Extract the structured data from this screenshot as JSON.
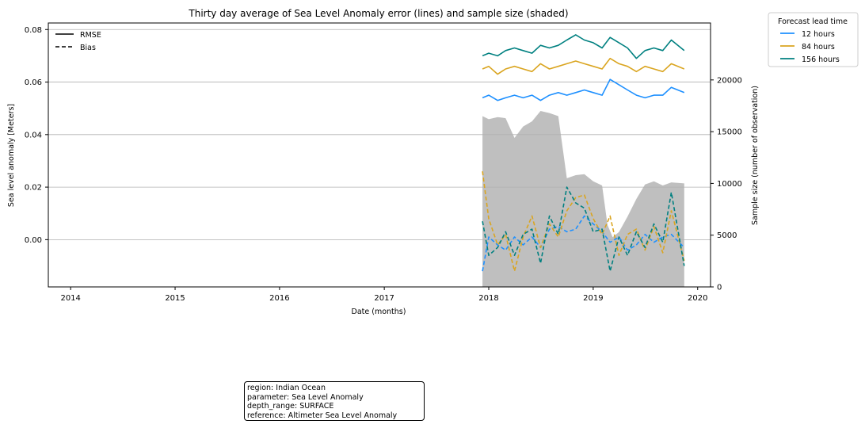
{
  "chart_data": {
    "type": "line",
    "title": "Thirty day average of Sea Level Anomaly error (lines) and sample size (shaded)",
    "xlabel": "Date (months)",
    "ylabel": "Sea level anomaly [Meters]",
    "y2label": "Sample size (number of observation)",
    "x_ticks": [
      "2014",
      "2015",
      "2016",
      "2017",
      "2018",
      "2019",
      "2020"
    ],
    "y_ticks": [
      "0.00",
      "0.02",
      "0.04",
      "0.06",
      "0.08"
    ],
    "y2_ticks": [
      "0",
      "5000",
      "10000",
      "15000",
      "20000"
    ],
    "xlim": [
      "2013-10-15",
      "2020-02-15"
    ],
    "ylim": [
      -0.018,
      0.0825
    ],
    "y2lim": [
      0,
      25500
    ],
    "grid": "horizontal",
    "style_legend": {
      "title": "",
      "entries": [
        {
          "label": "RMSE",
          "dash": "solid"
        },
        {
          "label": "Bias",
          "dash": "dashed"
        }
      ],
      "position": "top-left"
    },
    "lead_legend": {
      "title": "Forecast lead time",
      "entries": [
        "12 hours",
        "84 hours",
        "156 hours"
      ],
      "position": "outside-top-right"
    },
    "colors": {
      "12 hours": "#1e90ff",
      "84 hours": "#daa520",
      "156 hours": "#008080",
      "sample": "#bfbfbf"
    },
    "series": [
      {
        "name": "12 hours",
        "metric": "RMSE",
        "x": [
          "2017-12-10",
          "2018-01-01",
          "2018-02-01",
          "2018-03-01",
          "2018-04-01",
          "2018-05-01",
          "2018-06-01",
          "2018-07-01",
          "2018-08-01",
          "2018-09-01",
          "2018-10-01",
          "2018-11-01",
          "2018-12-01",
          "2019-01-01",
          "2019-02-01",
          "2019-03-01",
          "2019-04-01",
          "2019-05-01",
          "2019-06-01",
          "2019-07-01",
          "2019-08-01",
          "2019-09-01",
          "2019-10-01",
          "2019-11-15"
        ],
        "y": [
          0.054,
          0.055,
          0.053,
          0.054,
          0.055,
          0.054,
          0.055,
          0.053,
          0.055,
          0.056,
          0.055,
          0.056,
          0.057,
          0.056,
          0.055,
          0.061,
          0.059,
          0.057,
          0.055,
          0.054,
          0.055,
          0.055,
          0.058,
          0.056
        ]
      },
      {
        "name": "84 hours",
        "metric": "RMSE",
        "x": [
          "2017-12-10",
          "2018-01-01",
          "2018-02-01",
          "2018-03-01",
          "2018-04-01",
          "2018-05-01",
          "2018-06-01",
          "2018-07-01",
          "2018-08-01",
          "2018-09-01",
          "2018-10-01",
          "2018-11-01",
          "2018-12-01",
          "2019-01-01",
          "2019-02-01",
          "2019-03-01",
          "2019-04-01",
          "2019-05-01",
          "2019-06-01",
          "2019-07-01",
          "2019-08-01",
          "2019-09-01",
          "2019-10-01",
          "2019-11-15"
        ],
        "y": [
          0.065,
          0.066,
          0.063,
          0.065,
          0.066,
          0.065,
          0.064,
          0.067,
          0.065,
          0.066,
          0.067,
          0.068,
          0.067,
          0.066,
          0.065,
          0.069,
          0.067,
          0.066,
          0.064,
          0.066,
          0.065,
          0.064,
          0.067,
          0.065
        ]
      },
      {
        "name": "156 hours",
        "metric": "RMSE",
        "x": [
          "2017-12-10",
          "2018-01-01",
          "2018-02-01",
          "2018-03-01",
          "2018-04-01",
          "2018-05-01",
          "2018-06-01",
          "2018-07-01",
          "2018-08-01",
          "2018-09-01",
          "2018-10-01",
          "2018-11-01",
          "2018-12-01",
          "2019-01-01",
          "2019-02-01",
          "2019-03-01",
          "2019-04-01",
          "2019-05-01",
          "2019-06-01",
          "2019-07-01",
          "2019-08-01",
          "2019-09-01",
          "2019-10-01",
          "2019-11-15"
        ],
        "y": [
          0.07,
          0.071,
          0.07,
          0.072,
          0.073,
          0.072,
          0.071,
          0.074,
          0.073,
          0.074,
          0.076,
          0.078,
          0.076,
          0.075,
          0.073,
          0.077,
          0.075,
          0.073,
          0.069,
          0.072,
          0.073,
          0.072,
          0.076,
          0.072
        ]
      },
      {
        "name": "12 hours",
        "metric": "Bias",
        "x": [
          "2017-12-10",
          "2018-01-01",
          "2018-02-01",
          "2018-03-01",
          "2018-04-01",
          "2018-05-01",
          "2018-06-01",
          "2018-07-01",
          "2018-08-01",
          "2018-09-01",
          "2018-10-01",
          "2018-11-01",
          "2018-12-01",
          "2019-01-01",
          "2019-02-01",
          "2019-03-01",
          "2019-04-01",
          "2019-05-01",
          "2019-06-01",
          "2019-07-01",
          "2019-08-01",
          "2019-09-01",
          "2019-10-01",
          "2019-11-15"
        ],
        "y": [
          -0.012,
          0.001,
          -0.002,
          -0.004,
          0.001,
          -0.002,
          0.001,
          -0.003,
          0.004,
          0.005,
          0.003,
          0.004,
          0.009,
          0.006,
          0.003,
          -0.001,
          0.001,
          -0.004,
          -0.002,
          0.002,
          -0.001,
          0.001,
          0.002,
          -0.003
        ]
      },
      {
        "name": "84 hours",
        "metric": "Bias",
        "x": [
          "2017-12-10",
          "2018-01-01",
          "2018-02-01",
          "2018-03-01",
          "2018-04-01",
          "2018-05-01",
          "2018-06-01",
          "2018-07-01",
          "2018-08-01",
          "2018-09-01",
          "2018-10-01",
          "2018-11-01",
          "2018-12-01",
          "2019-01-01",
          "2019-02-01",
          "2019-03-01",
          "2019-04-01",
          "2019-05-01",
          "2019-06-01",
          "2019-07-01",
          "2019-08-01",
          "2019-09-01",
          "2019-10-01",
          "2019-11-15"
        ],
        "y": [
          0.026,
          0.008,
          -0.002,
          0.002,
          -0.012,
          0.001,
          0.009,
          -0.003,
          0.006,
          0.001,
          0.011,
          0.016,
          0.017,
          0.008,
          0.002,
          0.009,
          -0.006,
          0.002,
          0.004,
          -0.004,
          0.005,
          -0.005,
          0.011,
          -0.008
        ]
      },
      {
        "name": "156 hours",
        "metric": "Bias",
        "x": [
          "2017-12-10",
          "2018-01-01",
          "2018-02-01",
          "2018-03-01",
          "2018-04-01",
          "2018-05-01",
          "2018-06-01",
          "2018-07-01",
          "2018-08-01",
          "2018-09-01",
          "2018-10-01",
          "2018-11-01",
          "2018-12-01",
          "2019-01-01",
          "2019-02-01",
          "2019-03-01",
          "2019-04-01",
          "2019-05-01",
          "2019-06-01",
          "2019-07-01",
          "2019-08-01",
          "2019-09-01",
          "2019-10-01",
          "2019-11-15"
        ],
        "y": [
          0.007,
          -0.006,
          -0.003,
          0.003,
          -0.006,
          0.002,
          0.004,
          -0.009,
          0.009,
          0.002,
          0.02,
          0.014,
          0.012,
          0.003,
          0.004,
          -0.012,
          0.001,
          -0.006,
          0.003,
          -0.003,
          0.006,
          -0.001,
          0.018,
          -0.01
        ]
      }
    ],
    "sample_size": {
      "type": "area",
      "x": [
        "2017-12-10",
        "2018-01-01",
        "2018-02-01",
        "2018-03-01",
        "2018-04-01",
        "2018-05-01",
        "2018-06-01",
        "2018-07-01",
        "2018-08-01",
        "2018-09-01",
        "2018-10-01",
        "2018-11-01",
        "2018-12-01",
        "2019-01-01",
        "2019-02-01",
        "2019-02-20",
        "2019-03-10",
        "2019-04-01",
        "2019-05-01",
        "2019-06-01",
        "2019-07-01",
        "2019-08-01",
        "2019-09-01",
        "2019-10-01",
        "2019-11-15"
      ],
      "y": [
        16500,
        16200,
        16400,
        16300,
        14400,
        15500,
        16000,
        17000,
        16800,
        16500,
        10500,
        10800,
        10900,
        10200,
        9800,
        6000,
        4800,
        5300,
        6800,
        8500,
        9900,
        10200,
        9800,
        10100,
        10000
      ]
    }
  },
  "info_box": {
    "region": "region: Indian Ocean",
    "parameter": "parameter: Sea Level Anomaly",
    "depth_range": "depth_range: SURFACE",
    "reference": "reference: Altimeter Sea Level Anomaly"
  }
}
